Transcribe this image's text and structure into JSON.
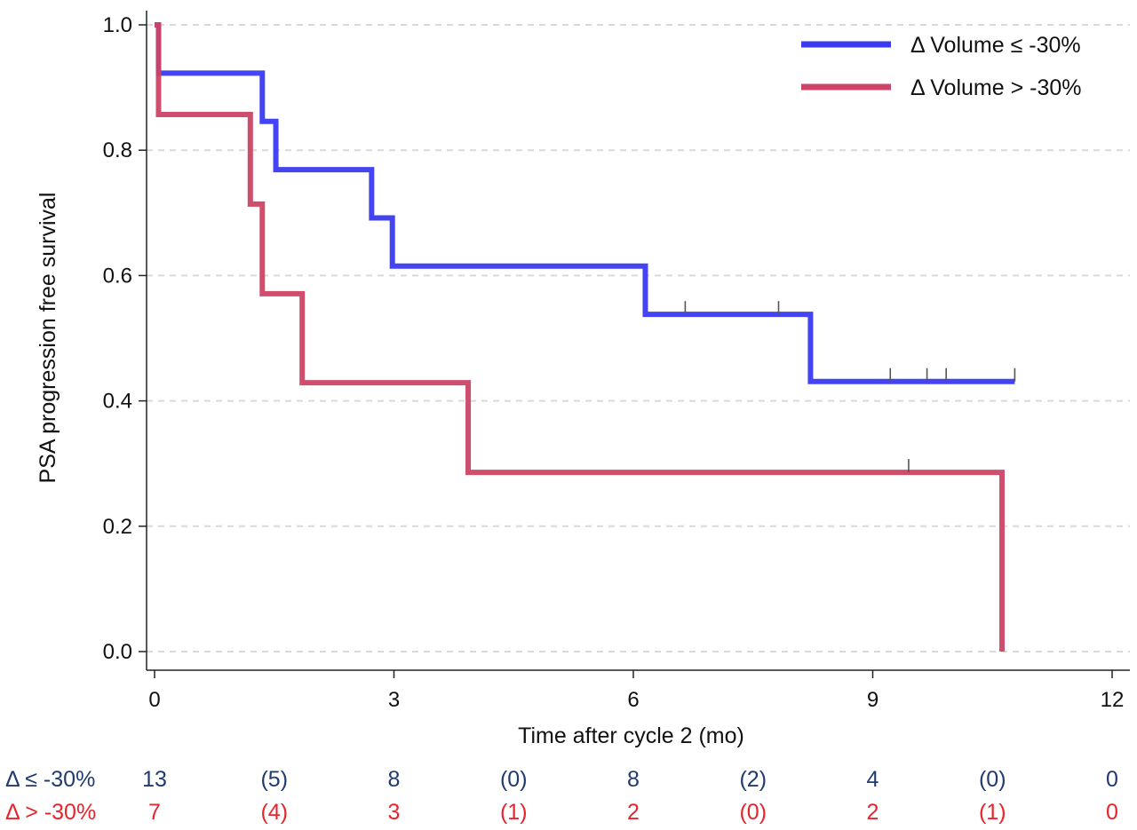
{
  "chart_data": {
    "type": "line",
    "step": true,
    "xlabel": "Time after cycle 2 (mo)",
    "ylabel": "PSA progression free survival",
    "xlim": [
      0,
      12
    ],
    "ylim": [
      0,
      1
    ],
    "x_ticks": [
      0,
      3,
      6,
      9,
      12
    ],
    "y_ticks": [
      0.0,
      0.2,
      0.4,
      0.6,
      0.8,
      1.0
    ],
    "y_tick_labels": [
      "0.0",
      "0.2",
      "0.4",
      "0.6",
      "0.8",
      "1.0"
    ],
    "grid": "horizontal dashed",
    "legend_position": "top-right",
    "series": [
      {
        "name": "Δ Volume ≤ -30%",
        "color": "#3a3af2",
        "steps": [
          [
            0,
            1.0
          ],
          [
            0.05,
            0.923
          ],
          [
            1.35,
            0.846
          ],
          [
            1.52,
            0.769
          ],
          [
            2.72,
            0.692
          ],
          [
            2.98,
            0.615
          ],
          [
            6.15,
            0.538
          ],
          [
            8.22,
            0.431
          ],
          [
            10.78,
            0.431
          ]
        ],
        "censor_times": [
          6.65,
          7.82,
          9.22,
          9.68,
          9.92,
          10.78
        ]
      },
      {
        "name": "Δ Volume > -30%",
        "color": "#cc4466",
        "steps": [
          [
            0,
            1.0
          ],
          [
            0.05,
            0.857
          ],
          [
            1.2,
            0.714
          ],
          [
            1.35,
            0.571
          ],
          [
            1.85,
            0.429
          ],
          [
            3.93,
            0.286
          ],
          [
            10.62,
            0.0
          ]
        ],
        "censor_times": [
          9.45
        ]
      }
    ],
    "risk_table": {
      "time_points": [
        0,
        1.5,
        3,
        4.5,
        6,
        7.5,
        9,
        10.5,
        12
      ],
      "rows": [
        {
          "label": "Δ ≤ -30%",
          "color": "#1f3b70",
          "values": [
            "13",
            "(5)",
            "8",
            "(0)",
            "8",
            "(2)",
            "4",
            "(0)",
            "0"
          ]
        },
        {
          "label": "Δ > -30%",
          "color": "#e8242c",
          "values": [
            "7",
            "(4)",
            "3",
            "(1)",
            "2",
            "(0)",
            "2",
            "(1)",
            "0"
          ]
        }
      ]
    }
  }
}
